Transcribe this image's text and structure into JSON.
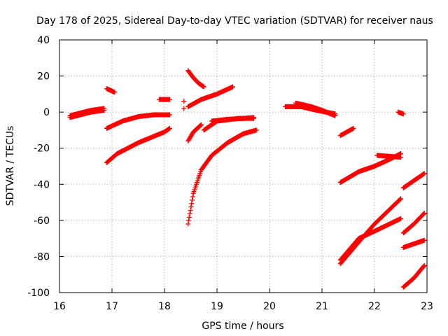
{
  "chart_data": {
    "type": "scatter",
    "title": "Day 178 of 2025, Sidereal Day-to-day VTEC variation (SDTVAR) for receiver naus",
    "xlabel": "GPS time / hours",
    "ylabel": "SDTVAR / TECUs",
    "xlim": [
      16,
      23
    ],
    "ylim": [
      -100,
      40
    ],
    "xticks": [
      16,
      17,
      18,
      19,
      20,
      21,
      22,
      23
    ],
    "yticks": [
      40,
      20,
      0,
      -20,
      -40,
      -60,
      -80,
      -100
    ],
    "grid": true,
    "marker": "plus",
    "color": "#ff0000",
    "series": [
      {
        "name": "a1",
        "x": [
          16.2,
          16.4,
          16.6,
          16.85
        ],
        "y": [
          -3,
          -1.5,
          0,
          1
        ]
      },
      {
        "name": "a2",
        "x": [
          16.2,
          16.4,
          16.6,
          16.85
        ],
        "y": [
          -2,
          -0.5,
          1,
          2
        ]
      },
      {
        "name": "b",
        "x": [
          16.9,
          17.2,
          17.5,
          17.8,
          18.1
        ],
        "y": [
          -9,
          -5,
          -2.5,
          -1.5,
          -1.5
        ]
      },
      {
        "name": "c",
        "x": [
          16.9,
          17.1,
          17.5,
          18.0,
          18.1
        ],
        "y": [
          -28,
          -23,
          -17,
          -11,
          -9
        ]
      },
      {
        "name": "d",
        "x": [
          16.9,
          17.05
        ],
        "y": [
          13,
          11
        ]
      },
      {
        "name": "e",
        "x": [
          17.9,
          18.1
        ],
        "y": [
          7,
          7
        ]
      },
      {
        "name": "f",
        "x": [
          18.37,
          18.37
        ],
        "y": [
          6,
          2
        ]
      },
      {
        "name": "g",
        "x": [
          18.45,
          18.55,
          18.65,
          18.75
        ],
        "y": [
          23,
          19,
          16,
          14
        ]
      },
      {
        "name": "h",
        "x": [
          18.45,
          18.7,
          19.0,
          19.3
        ],
        "y": [
          3,
          7,
          10,
          14
        ]
      },
      {
        "name": "i",
        "x": [
          18.45,
          18.55,
          18.7
        ],
        "y": [
          -16,
          -11,
          -7
        ]
      },
      {
        "name": "j",
        "x": [
          18.45,
          18.55,
          18.7,
          18.9,
          19.2,
          19.5,
          19.75
        ],
        "y": [
          -62,
          -45,
          -32,
          -24,
          -17,
          -12,
          -10
        ]
      },
      {
        "name": "k",
        "x": [
          18.75,
          19.0,
          19.4,
          19.7
        ],
        "y": [
          -10,
          -5,
          -3.5,
          -3.5
        ]
      },
      {
        "name": "l",
        "x": [
          18.9,
          19.2,
          19.5,
          19.7
        ],
        "y": [
          -5,
          -4,
          -3.5,
          -3
        ]
      },
      {
        "name": "m",
        "x": [
          20.3,
          20.6,
          20.9,
          21.25
        ],
        "y": [
          3,
          3,
          1,
          -1
        ]
      },
      {
        "name": "n",
        "x": [
          20.5,
          20.8,
          21.0,
          21.25
        ],
        "y": [
          5,
          3,
          1,
          -2
        ]
      },
      {
        "name": "o",
        "x": [
          21.35,
          21.6
        ],
        "y": [
          -13,
          -9
        ]
      },
      {
        "name": "p",
        "x": [
          21.35,
          21.7,
          22.0,
          22.3,
          22.5
        ],
        "y": [
          -39,
          -33,
          -30,
          -26,
          -23
        ]
      },
      {
        "name": "q",
        "x": [
          22.05,
          22.5
        ],
        "y": [
          -24,
          -25
        ]
      },
      {
        "name": "r",
        "x": [
          22.45,
          22.55
        ],
        "y": [
          0,
          -1
        ]
      },
      {
        "name": "s",
        "x": [
          21.35,
          21.7,
          22.0,
          22.5
        ],
        "y": [
          -84,
          -72,
          -62,
          -48
        ]
      },
      {
        "name": "t",
        "x": [
          21.35,
          21.7,
          22.0,
          22.5
        ],
        "y": [
          -82,
          -70,
          -66,
          -59
        ]
      },
      {
        "name": "u",
        "x": [
          22.55,
          22.75,
          22.95
        ],
        "y": [
          -42,
          -38,
          -34
        ]
      },
      {
        "name": "v",
        "x": [
          22.55,
          22.75,
          22.95
        ],
        "y": [
          -67,
          -62,
          -56
        ]
      },
      {
        "name": "w",
        "x": [
          22.55,
          22.75,
          22.95
        ],
        "y": [
          -75,
          -73,
          -71
        ]
      },
      {
        "name": "x",
        "x": [
          22.55,
          22.75,
          22.95
        ],
        "y": [
          -97,
          -92,
          -85
        ]
      }
    ]
  }
}
